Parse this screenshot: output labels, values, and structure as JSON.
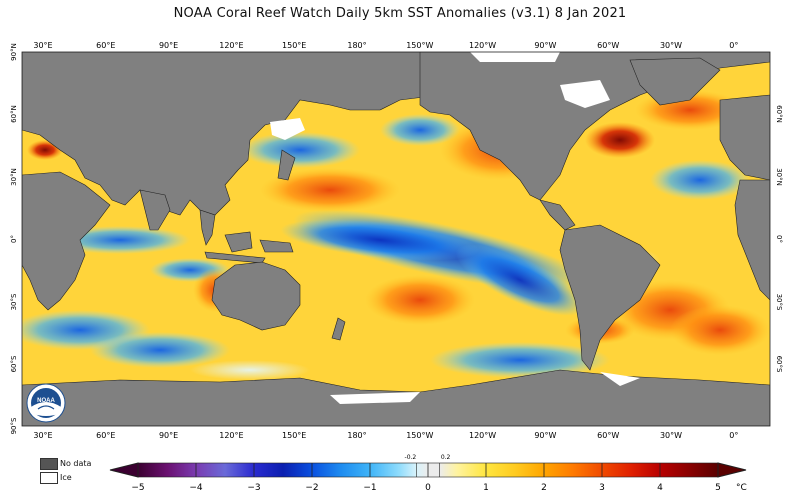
{
  "title": "NOAA Coral Reef Watch Daily 5km SST Anomalies  (v3.1)   8 Jan 2021",
  "map": {
    "lon_ticks": [
      "30°E",
      "60°E",
      "90°E",
      "120°E",
      "150°E",
      "180°",
      "150°W",
      "120°W",
      "90°W",
      "60°W",
      "30°W",
      "0°"
    ],
    "lat_ticks_left": [
      "90°N",
      "60°N",
      "30°N",
      "0°",
      "30°S",
      "60°S",
      "90°S"
    ],
    "lat_ticks_right": [
      "60°N",
      "30°N",
      "0°",
      "30°S",
      "60°S"
    ],
    "land_color": "#808080",
    "ice_color": "#ffffff"
  },
  "legend": {
    "no_data_label": "No data",
    "ice_label": "Ice",
    "no_data_color": "#555555",
    "ice_color": "#ffffff"
  },
  "colorbar": {
    "unit": "°C",
    "ticks": [
      "−5",
      "−4",
      "−3",
      "−2",
      "−1",
      "0",
      "1",
      "2",
      "3",
      "4",
      "5"
    ],
    "inner_ticks": [
      "-0.2",
      "0.2"
    ],
    "stops": [
      {
        "v": -5,
        "c": "#3b0030"
      },
      {
        "v": -4.5,
        "c": "#6a1070"
      },
      {
        "v": -4,
        "c": "#7a3bb0"
      },
      {
        "v": -3.5,
        "c": "#6a6ad8"
      },
      {
        "v": -3,
        "c": "#2a2ad0"
      },
      {
        "v": -2.5,
        "c": "#0b1fb0"
      },
      {
        "v": -2,
        "c": "#0a50e0"
      },
      {
        "v": -1.5,
        "c": "#1e8cf0"
      },
      {
        "v": -1,
        "c": "#3fb4f8"
      },
      {
        "v": -0.5,
        "c": "#8fdcfc"
      },
      {
        "v": -0.2,
        "c": "#d8f3fb"
      },
      {
        "v": 0,
        "c": "#ececec"
      },
      {
        "v": 0.2,
        "c": "#ececec"
      },
      {
        "v": 0.5,
        "c": "#fff3a0"
      },
      {
        "v": 1,
        "c": "#ffe640"
      },
      {
        "v": 1.5,
        "c": "#ffcb20"
      },
      {
        "v": 2,
        "c": "#ffa500"
      },
      {
        "v": 2.5,
        "c": "#ff7a00"
      },
      {
        "v": 3,
        "c": "#f04a00"
      },
      {
        "v": 3.5,
        "c": "#e02000"
      },
      {
        "v": 4,
        "c": "#b80000"
      },
      {
        "v": 4.5,
        "c": "#8a0000"
      },
      {
        "v": 5,
        "c": "#5a0000"
      }
    ]
  },
  "logo": {
    "text": "NOAA"
  }
}
